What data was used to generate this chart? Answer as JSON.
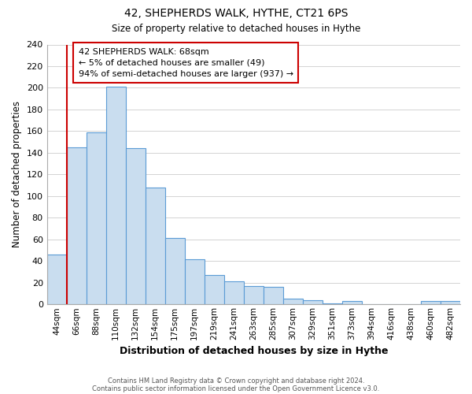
{
  "title1": "42, SHEPHERDS WALK, HYTHE, CT21 6PS",
  "title2": "Size of property relative to detached houses in Hythe",
  "xlabel": "Distribution of detached houses by size in Hythe",
  "ylabel": "Number of detached properties",
  "bar_labels": [
    "44sqm",
    "66sqm",
    "88sqm",
    "110sqm",
    "132sqm",
    "154sqm",
    "175sqm",
    "197sqm",
    "219sqm",
    "241sqm",
    "263sqm",
    "285sqm",
    "307sqm",
    "329sqm",
    "351sqm",
    "373sqm",
    "394sqm",
    "416sqm",
    "438sqm",
    "460sqm",
    "482sqm"
  ],
  "bar_heights": [
    46,
    145,
    159,
    201,
    144,
    108,
    61,
    42,
    27,
    21,
    17,
    16,
    5,
    4,
    1,
    3,
    0,
    0,
    0,
    3,
    3
  ],
  "bar_color": "#c9ddef",
  "bar_edge_color": "#5b9bd5",
  "grid_color": "#cccccc",
  "annotation_line_color": "#cc0000",
  "annotation_box_text": "42 SHEPHERDS WALK: 68sqm\n← 5% of detached houses are smaller (49)\n94% of semi-detached houses are larger (937) →",
  "footer1": "Contains HM Land Registry data © Crown copyright and database right 2024.",
  "footer2": "Contains public sector information licensed under the Open Government Licence v3.0.",
  "ylim": [
    0,
    240
  ],
  "yticks": [
    0,
    20,
    40,
    60,
    80,
    100,
    120,
    140,
    160,
    180,
    200,
    220,
    240
  ]
}
